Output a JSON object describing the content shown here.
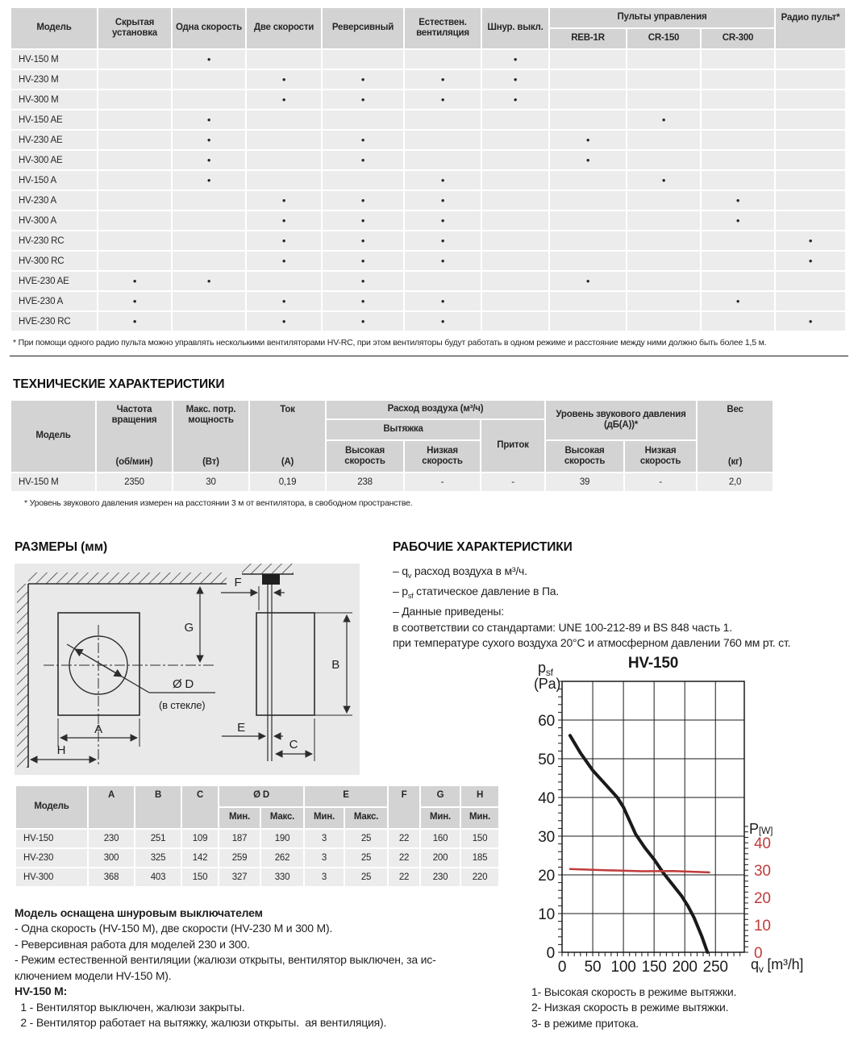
{
  "colors": {
    "accent_red": "#c13b3b",
    "table_header_bg": "#d3d3d3",
    "table_row_bg": "#ececec",
    "diagram_bg": "#e9e9e9",
    "text": "#1f1f1f"
  },
  "features_table": {
    "col_model": "Модель",
    "columns": [
      "Скрытая установка",
      "Одна скорость",
      "Две скорости",
      "Реверсивный",
      "Естествен. вентиляция",
      "Шнур. выкл."
    ],
    "remotes_group": "Пульты управления",
    "remote_columns": [
      "REB-1R",
      "CR-150",
      "CR-300"
    ],
    "radio_column": "Радио пульт*",
    "dot": "•",
    "rows": [
      {
        "model": "HV-150 M",
        "dots": [
          0,
          1,
          0,
          0,
          0,
          1,
          0,
          0,
          0,
          0
        ]
      },
      {
        "model": "HV-230 M",
        "dots": [
          0,
          0,
          1,
          1,
          1,
          1,
          0,
          0,
          0,
          0
        ]
      },
      {
        "model": "HV-300 M",
        "dots": [
          0,
          0,
          1,
          1,
          1,
          1,
          0,
          0,
          0,
          0
        ]
      },
      {
        "model": "HV-150 AE",
        "dots": [
          0,
          1,
          0,
          0,
          0,
          0,
          0,
          1,
          0,
          0
        ]
      },
      {
        "model": "HV-230 AE",
        "dots": [
          0,
          1,
          0,
          1,
          0,
          0,
          1,
          0,
          0,
          0
        ]
      },
      {
        "model": "HV-300 AE",
        "dots": [
          0,
          1,
          0,
          1,
          0,
          0,
          1,
          0,
          0,
          0
        ]
      },
      {
        "model": "HV-150 A",
        "dots": [
          0,
          1,
          0,
          0,
          1,
          0,
          0,
          1,
          0,
          0
        ]
      },
      {
        "model": "HV-230 A",
        "dots": [
          0,
          0,
          1,
          1,
          1,
          0,
          0,
          0,
          1,
          0
        ]
      },
      {
        "model": "HV-300 A",
        "dots": [
          0,
          0,
          1,
          1,
          1,
          0,
          0,
          0,
          1,
          0
        ]
      },
      {
        "model": "HV-230 RC",
        "dots": [
          0,
          0,
          1,
          1,
          1,
          0,
          0,
          0,
          0,
          1
        ]
      },
      {
        "model": "HV-300 RC",
        "dots": [
          0,
          0,
          1,
          1,
          1,
          0,
          0,
          0,
          0,
          1
        ]
      },
      {
        "model": "HVE-230 AE",
        "dots": [
          1,
          1,
          0,
          1,
          0,
          0,
          1,
          0,
          0,
          0
        ]
      },
      {
        "model": "HVE-230 A",
        "dots": [
          1,
          0,
          1,
          1,
          1,
          0,
          0,
          0,
          1,
          0
        ]
      },
      {
        "model": "HVE-230 RC",
        "dots": [
          1,
          0,
          1,
          1,
          1,
          0,
          0,
          0,
          0,
          1
        ]
      }
    ],
    "footnote": "* При помощи одного радио пульта можно управлять несколькими вентиляторами HV-RC, при этом вентиляторы будут работать в одном режиме и расстояние между ними должно быть более 1,5 м."
  },
  "tech_section": {
    "title": "ТЕХНИЧЕСКИЕ ХАРАКТЕРИСТИКИ",
    "table": {
      "model_header": "Модель",
      "cols": [
        {
          "title": "Частота вращения",
          "unit": "(об/мин)"
        },
        {
          "title": "Макс. потр. мощность",
          "unit": "(Вт)"
        },
        {
          "title": "Ток",
          "unit": "(А)"
        }
      ],
      "airflow_group": "Расход воздуха (м³/ч)",
      "exhaust": "Вытяжка",
      "supply": "Приток",
      "high_speed": "Высокая скорость",
      "low_speed": "Низкая скорость",
      "noise_group": "Уровень звукового давления (дБ(А))*",
      "weight_title": "Вес",
      "weight_unit": "(кг)",
      "row": {
        "model": "HV-150 M",
        "rpm": "2350",
        "power": "30",
        "current": "0,19",
        "exhaust_high": "238",
        "exhaust_low": "-",
        "supply": "-",
        "noise_high": "39",
        "noise_low": "-",
        "weight": "2,0"
      }
    },
    "footnote": "* Уровень звукового давления измерен на расстоянии 3 м от вентилятора, в свободном пространстве."
  },
  "dimensions_section": {
    "title": "РАЗМЕРЫ (мм)",
    "diagram_labels": {
      "a": "A",
      "b": "B",
      "c": "C",
      "e": "E",
      "f": "F",
      "g": "G",
      "h": "H",
      "diameter": "Ø D",
      "glass": "(в стекле)"
    },
    "table": {
      "model_header": "Модель",
      "col_a": "A",
      "col_b": "B",
      "col_c": "C",
      "dia_col": "Ø D",
      "e_col": "E",
      "f_col": "F",
      "g_col": "G",
      "h_col": "H",
      "min": "Мин.",
      "max": "Макс.",
      "rows": [
        {
          "model": "HV-150",
          "values": [
            "230",
            "251",
            "109",
            "187",
            "190",
            "3",
            "25",
            "22",
            "160",
            "150"
          ]
        },
        {
          "model": "HV-230",
          "values": [
            "300",
            "325",
            "142",
            "259",
            "262",
            "3",
            "25",
            "22",
            "200",
            "185"
          ]
        },
        {
          "model": "HV-300",
          "values": [
            "368",
            "403",
            "150",
            "327",
            "330",
            "3",
            "25",
            "22",
            "230",
            "220"
          ]
        }
      ]
    }
  },
  "performance_section": {
    "title": "РАБОЧИЕ ХАРАКТЕРИСТИКИ",
    "bullets": [
      [
        {
          "t": "– q"
        },
        {
          "s": "v"
        },
        {
          "t": " расход воздуха в м³/ч."
        }
      ],
      [
        {
          "t": "– p"
        },
        {
          "s": "sf"
        },
        {
          "t": " статическое давление в Па."
        }
      ],
      [
        {
          "t": "– Данные приведены:"
        }
      ],
      [
        {
          "t": "в соответствии со стандартами: UNE 100-212-89 и BS 848 часть 1."
        }
      ],
      [
        {
          "t": "при температуре сухого воздуха 20°C и атмосферном давлении 760 мм рт. ст."
        }
      ]
    ]
  },
  "bottom_text": {
    "lines": [
      {
        "text": "Модель оснащена шнуровым выключателем",
        "bold": true
      },
      {
        "text": "- Одна скорость (HV-150 M), две скорости (HV-230 M и 300 M)."
      },
      {
        "text": "- Реверсивная работа для моделей 230 и 300."
      },
      {
        "text": "- Режим естественной вентиляции (жалюзи открыты, вентилятор выключен, за ис-"
      },
      {
        "text": "ключением модели HV-150 M)."
      },
      {
        "text": "HV-150 M:",
        "bold": true
      },
      {
        "text": "  1 - Вентилятор выключен, жалюзи закрыты."
      },
      {
        "text": "  2 - Вентилятор работает на вытяжку, жалюзи открыты.  ая вентиляция)."
      }
    ]
  },
  "chart_data": {
    "type": "line",
    "title": "HV-150",
    "x_axis": {
      "label_main": "q",
      "label_sub": "v",
      "label_unit": " [m³/h]",
      "ticks": [
        0,
        50,
        100,
        150,
        200,
        250
      ],
      "max": 297,
      "minor_step": 10,
      "minor_max": 290
    },
    "y_axis": {
      "label_main": "p",
      "label_sub": "sf",
      "label_unit": "(Pa)",
      "ticks": [
        0,
        10,
        20,
        30,
        40,
        50,
        60
      ],
      "max": 70,
      "minor_step": 2,
      "minor_max": 70
    },
    "y2_axis": {
      "label_main": "P",
      "label_unit": "[W]",
      "ticks": [
        0,
        10,
        20,
        30,
        40
      ],
      "axis_top": 99,
      "minor_step": 2,
      "minor_max": 46,
      "color": "#c13b3b"
    },
    "grid": true,
    "series": [
      {
        "name": "Статическое давление, высокая скорость (вытяжка)",
        "axis": "y",
        "color": "#1a1a1a",
        "width": 4,
        "points": [
          [
            13,
            56
          ],
          [
            30,
            51.5
          ],
          [
            50,
            47
          ],
          [
            70,
            43.5
          ],
          [
            90,
            40
          ],
          [
            100,
            37.5
          ],
          [
            110,
            34
          ],
          [
            120,
            30.5
          ],
          [
            135,
            27
          ],
          [
            150,
            24
          ],
          [
            165,
            20.5
          ],
          [
            180,
            17.5
          ],
          [
            195,
            14.5
          ],
          [
            205,
            12
          ],
          [
            215,
            9
          ],
          [
            228,
            4
          ],
          [
            237,
            0
          ]
        ]
      },
      {
        "name": "Потребляемая мощность",
        "axis": "y2",
        "color": "#c13b3b",
        "width": 2.5,
        "points": [
          [
            13,
            30.4
          ],
          [
            70,
            30.0
          ],
          [
            130,
            29.6
          ],
          [
            180,
            29.7
          ],
          [
            240,
            29.2
          ]
        ]
      }
    ],
    "notes": [
      "1- Высокая скорость в режиме вытяжки.",
      "2- Низкая скорость в режиме вытяжки.",
      "3- в режиме притока."
    ]
  }
}
